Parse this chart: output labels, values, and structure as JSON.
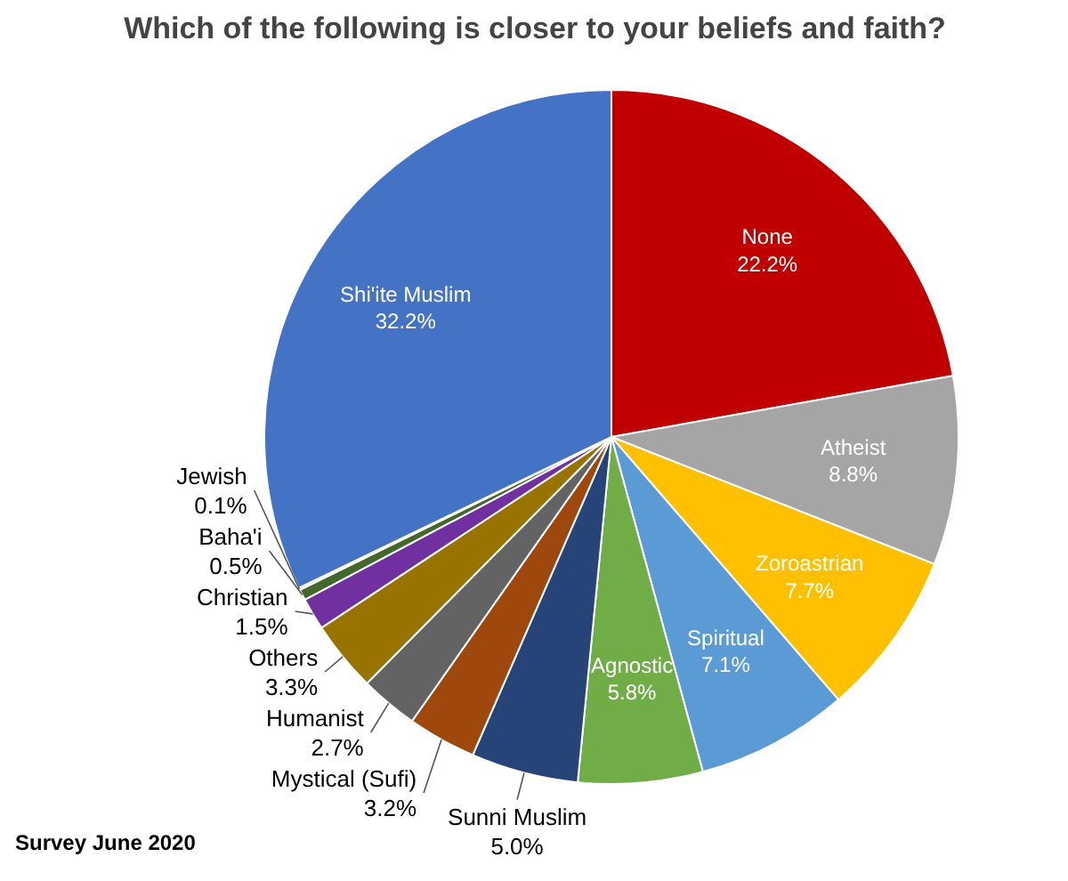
{
  "chart_data": {
    "type": "pie",
    "title": "Which of the following is closer to your beliefs and faith?",
    "categories": [
      "None",
      "Atheist",
      "Zoroastrian",
      "Spiritual",
      "Agnostic",
      "Sunni Muslim",
      "Mystical (Sufi)",
      "Humanist",
      "Others",
      "Christian",
      "Baha'i",
      "Jewish",
      "Shi'ite Muslim"
    ],
    "values": [
      22.2,
      8.8,
      7.7,
      7.1,
      5.8,
      5.0,
      3.2,
      2.7,
      3.3,
      1.5,
      0.5,
      0.1,
      32.2
    ],
    "value_labels": [
      "22.2%",
      "8.8%",
      "7.7%",
      "7.1%",
      "5.8%",
      "5.0%",
      "3.2%",
      "2.7%",
      "3.3%",
      "1.5%",
      "0.5%",
      "0.1%",
      "32.2%"
    ],
    "colors": [
      "#c00000",
      "#a5a5a5",
      "#ffc000",
      "#5b9bd5",
      "#70ad47",
      "#264478",
      "#9e480e",
      "#636363",
      "#997300",
      "#7030a0",
      "#43682b",
      "#698ed0",
      "#4472c4"
    ],
    "annotations": [
      "Survey June 2020"
    ]
  }
}
